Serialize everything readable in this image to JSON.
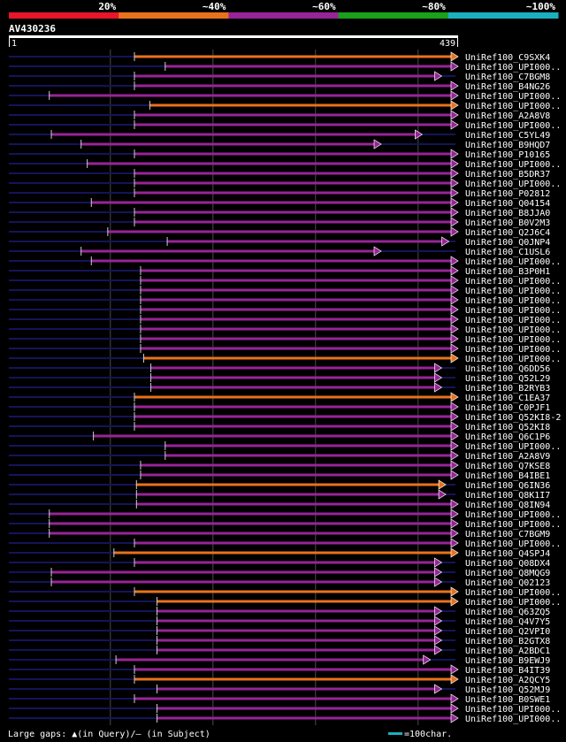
{
  "chart_data": {
    "type": "alignment-overview",
    "query_name": "AV430236",
    "query_start": "1",
    "query_end": "439",
    "query_length": 439,
    "identity_legend": [
      {
        "label": "20%",
        "color": "#e8152b"
      },
      {
        "label": "~40%",
        "color": "#e8721c"
      },
      {
        "label": "~60%",
        "color": "#982498"
      },
      {
        "label": "~80%",
        "color": "#1aa01a"
      },
      {
        "label": "~100%",
        "color": "#1ab0c0"
      }
    ],
    "legend": {
      "gaps_label": "Large gaps: ▲(in Query)/– (in Subject)",
      "scale_label": "=100char."
    },
    "hits": [
      {
        "name": "UniRef100_C9SXK4",
        "q_start": 123,
        "q_end": 439,
        "ident": 40
      },
      {
        "name": "UniRef100_UPI000..",
        "q_start": 153,
        "q_end": 439,
        "ident": 60
      },
      {
        "name": "UniRef100_C7BGM8",
        "q_start": 123,
        "q_end": 423,
        "ident": 60
      },
      {
        "name": "UniRef100_B4NG26",
        "q_start": 123,
        "q_end": 439,
        "ident": 60
      },
      {
        "name": "UniRef100_UPI000..",
        "q_start": 40,
        "q_end": 439,
        "ident": 60
      },
      {
        "name": "UniRef100_UPI000..",
        "q_start": 138,
        "q_end": 439,
        "ident": 40
      },
      {
        "name": "UniRef100_A2A8V8",
        "q_start": 123,
        "q_end": 439,
        "ident": 60
      },
      {
        "name": "UniRef100_UPI000..",
        "q_start": 123,
        "q_end": 439,
        "ident": 60
      },
      {
        "name": "UniRef100_C5YL49",
        "q_start": 42,
        "q_end": 404,
        "ident": 60
      },
      {
        "name": "UniRef100_B9HQD7",
        "q_start": 71,
        "q_end": 364,
        "ident": 60
      },
      {
        "name": "UniRef100_P10165",
        "q_start": 123,
        "q_end": 439,
        "ident": 60
      },
      {
        "name": "UniRef100_UPI000..",
        "q_start": 77,
        "q_end": 439,
        "ident": 60
      },
      {
        "name": "UniRef100_B5DR37",
        "q_start": 123,
        "q_end": 439,
        "ident": 60
      },
      {
        "name": "UniRef100_UPI000..",
        "q_start": 123,
        "q_end": 439,
        "ident": 60
      },
      {
        "name": "UniRef100_P02812",
        "q_start": 123,
        "q_end": 439,
        "ident": 60
      },
      {
        "name": "UniRef100_Q04154",
        "q_start": 81,
        "q_end": 439,
        "ident": 60
      },
      {
        "name": "UniRef100_B8JJA0",
        "q_start": 123,
        "q_end": 439,
        "ident": 60
      },
      {
        "name": "UniRef100_B0V2M3",
        "q_start": 123,
        "q_end": 439,
        "ident": 60
      },
      {
        "name": "UniRef100_Q2J6C4",
        "q_start": 97,
        "q_end": 439,
        "ident": 60
      },
      {
        "name": "UniRef100_Q0JNP4",
        "q_start": 155,
        "q_end": 430,
        "ident": 60
      },
      {
        "name": "UniRef100_C1USL6",
        "q_start": 71,
        "q_end": 364,
        "ident": 60
      },
      {
        "name": "UniRef100_UPI000..",
        "q_start": 81,
        "q_end": 439,
        "ident": 60
      },
      {
        "name": "UniRef100_B3P0H1",
        "q_start": 129,
        "q_end": 439,
        "ident": 60
      },
      {
        "name": "UniRef100_UPI000..",
        "q_start": 129,
        "q_end": 439,
        "ident": 60
      },
      {
        "name": "UniRef100_UPI000..",
        "q_start": 129,
        "q_end": 439,
        "ident": 60
      },
      {
        "name": "UniRef100_UPI000..",
        "q_start": 129,
        "q_end": 439,
        "ident": 60
      },
      {
        "name": "UniRef100_UPI000..",
        "q_start": 129,
        "q_end": 439,
        "ident": 60
      },
      {
        "name": "UniRef100_UPI000..",
        "q_start": 129,
        "q_end": 439,
        "ident": 60
      },
      {
        "name": "UniRef100_UPI000..",
        "q_start": 129,
        "q_end": 439,
        "ident": 60
      },
      {
        "name": "UniRef100_UPI000..",
        "q_start": 129,
        "q_end": 439,
        "ident": 60
      },
      {
        "name": "UniRef100_UPI000..",
        "q_start": 129,
        "q_end": 439,
        "ident": 60
      },
      {
        "name": "UniRef100_UPI000..",
        "q_start": 132,
        "q_end": 439,
        "ident": 40
      },
      {
        "name": "UniRef100_Q6DD56",
        "q_start": 139,
        "q_end": 423,
        "ident": 60
      },
      {
        "name": "UniRef100_Q52L29",
        "q_start": 139,
        "q_end": 423,
        "ident": 60
      },
      {
        "name": "UniRef100_B2RYB3",
        "q_start": 139,
        "q_end": 423,
        "ident": 60
      },
      {
        "name": "UniRef100_C1EA37",
        "q_start": 123,
        "q_end": 439,
        "ident": 40
      },
      {
        "name": "UniRef100_C0PJF1",
        "q_start": 123,
        "q_end": 439,
        "ident": 60
      },
      {
        "name": "UniRef100_Q52KI8-2",
        "q_start": 123,
        "q_end": 439,
        "ident": 60
      },
      {
        "name": "UniRef100_Q52KI8",
        "q_start": 123,
        "q_end": 439,
        "ident": 60
      },
      {
        "name": "UniRef100_Q6C1P6",
        "q_start": 83,
        "q_end": 439,
        "ident": 60
      },
      {
        "name": "UniRef100_UPI000..",
        "q_start": 153,
        "q_end": 439,
        "ident": 60
      },
      {
        "name": "UniRef100_A2A8V9",
        "q_start": 153,
        "q_end": 439,
        "ident": 60
      },
      {
        "name": "UniRef100_Q7KSE8",
        "q_start": 129,
        "q_end": 439,
        "ident": 60
      },
      {
        "name": "UniRef100_B4IBE1",
        "q_start": 129,
        "q_end": 439,
        "ident": 60
      },
      {
        "name": "UniRef100_Q6IN36",
        "q_start": 125,
        "q_end": 427,
        "ident": 40
      },
      {
        "name": "UniRef100_Q8K1I7",
        "q_start": 125,
        "q_end": 427,
        "ident": 60
      },
      {
        "name": "UniRef100_Q8IN94",
        "q_start": 125,
        "q_end": 439,
        "ident": 60
      },
      {
        "name": "UniRef100_UPI000..",
        "q_start": 40,
        "q_end": 439,
        "ident": 60
      },
      {
        "name": "UniRef100_UPI000..",
        "q_start": 40,
        "q_end": 439,
        "ident": 60
      },
      {
        "name": "UniRef100_C7BGM9",
        "q_start": 40,
        "q_end": 439,
        "ident": 60
      },
      {
        "name": "UniRef100_UPI000..",
        "q_start": 123,
        "q_end": 439,
        "ident": 60
      },
      {
        "name": "UniRef100_Q4SPJ4",
        "q_start": 103,
        "q_end": 439,
        "ident": 40
      },
      {
        "name": "UniRef100_Q08DX4",
        "q_start": 123,
        "q_end": 423,
        "ident": 60
      },
      {
        "name": "UniRef100_Q8MQG9",
        "q_start": 42,
        "q_end": 423,
        "ident": 60
      },
      {
        "name": "UniRef100_Q02123",
        "q_start": 42,
        "q_end": 423,
        "ident": 60
      },
      {
        "name": "UniRef100_UPI000..",
        "q_start": 123,
        "q_end": 439,
        "ident": 40
      },
      {
        "name": "UniRef100_UPI000..",
        "q_start": 145,
        "q_end": 439,
        "ident": 40
      },
      {
        "name": "UniRef100_Q63ZQ5",
        "q_start": 145,
        "q_end": 423,
        "ident": 60
      },
      {
        "name": "UniRef100_Q4V7Y5",
        "q_start": 145,
        "q_end": 423,
        "ident": 60
      },
      {
        "name": "UniRef100_Q2VPI0",
        "q_start": 145,
        "q_end": 423,
        "ident": 60
      },
      {
        "name": "UniRef100_B2GTX8",
        "q_start": 145,
        "q_end": 423,
        "ident": 60
      },
      {
        "name": "UniRef100_A2BDC1",
        "q_start": 145,
        "q_end": 423,
        "ident": 60
      },
      {
        "name": "UniRef100_B9EWJ9",
        "q_start": 105,
        "q_end": 412,
        "ident": 60
      },
      {
        "name": "UniRef100_B4IT39",
        "q_start": 123,
        "q_end": 439,
        "ident": 60
      },
      {
        "name": "UniRef100_A2QCY5",
        "q_start": 123,
        "q_end": 439,
        "ident": 40
      },
      {
        "name": "UniRef100_Q52MJ9",
        "q_start": 145,
        "q_end": 423,
        "ident": 60
      },
      {
        "name": "UniRef100_B0SWE1",
        "q_start": 123,
        "q_end": 439,
        "ident": 60
      },
      {
        "name": "UniRef100_UPI000..",
        "q_start": 145,
        "q_end": 439,
        "ident": 60
      },
      {
        "name": "UniRef100_UPI000..",
        "q_start": 145,
        "q_end": 439,
        "ident": 60
      }
    ]
  }
}
